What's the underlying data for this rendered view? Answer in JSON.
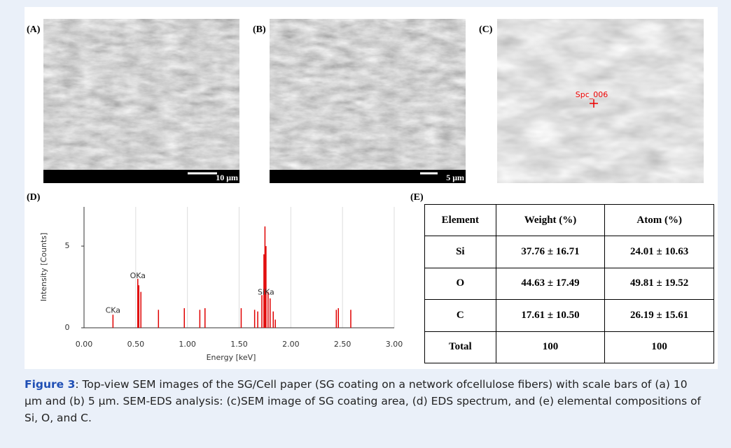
{
  "panels": [
    {
      "label": "(A)",
      "scale_bar": "10 μm"
    },
    {
      "label": "(B)",
      "scale_bar": "5 μm"
    },
    {
      "label": "(C)",
      "annotation": "Spc_006"
    }
  ],
  "chart_data": {
    "type": "stem",
    "panel_label": "(D)",
    "x_label": "Energy [keV]",
    "y_label": "Intensity [Counts]",
    "color": "#e00000",
    "x": [
      0.28,
      0.52,
      0.53,
      0.55,
      0.72,
      0.97,
      1.12,
      1.17,
      1.52,
      1.65,
      1.68,
      1.72,
      1.74,
      1.75,
      1.76,
      1.78,
      1.8,
      1.83,
      1.85,
      2.44,
      2.46,
      2.58
    ],
    "values": [
      0.8,
      3.0,
      2.6,
      2.2,
      1.1,
      1.2,
      1.1,
      1.2,
      1.2,
      1.1,
      1.0,
      2.0,
      4.5,
      6.2,
      5.0,
      2.2,
      1.8,
      1.0,
      0.5,
      1.1,
      1.2,
      1.1
    ],
    "xlim": [
      0,
      3
    ],
    "ylim": [
      0,
      7.4
    ],
    "xticks": [
      {
        "value": 0,
        "label": "0.00"
      },
      {
        "value": 0.5,
        "label": "0.50"
      },
      {
        "value": 1,
        "label": "1.00"
      },
      {
        "value": 1.5,
        "label": "1.50"
      },
      {
        "value": 2,
        "label": "2.00"
      },
      {
        "value": 2.5,
        "label": "2.50"
      },
      {
        "value": 3,
        "label": "3.00"
      }
    ],
    "yticks": [
      0,
      5
    ],
    "grid": true,
    "annotations": [
      {
        "text": "CKa",
        "x": 0.28,
        "y": 0.8
      },
      {
        "text": "OKa",
        "x": 0.52,
        "y": 2.9
      },
      {
        "text": "SiKa",
        "x": 1.76,
        "y": 1.9
      }
    ]
  },
  "table": {
    "label": "(E)",
    "header": [
      "Element",
      "Weight (%)",
      "Atom (%)"
    ],
    "rows": [
      [
        "Si",
        "37.76 ± 16.71",
        "24.01 ± 10.63"
      ],
      [
        "O",
        "44.63 ± 17.49",
        "49.81 ± 19.52"
      ],
      [
        "C",
        "17.61 ± 10.50",
        "26.19 ± 15.61"
      ],
      [
        "Total",
        "100",
        "100"
      ]
    ]
  },
  "caption": {
    "figure_label": "Figure 3",
    "text": ": Top-view SEM images of the SG/Cell paper (SG coating on a network ofcellulose fibers) with scale bars of (a) 10 μm and (b) 5 μm. SEM-EDS analysis: (c)SEM image of SG coating area, (d) EDS spectrum, and (e) elemental compositions of Si, O, and C."
  }
}
